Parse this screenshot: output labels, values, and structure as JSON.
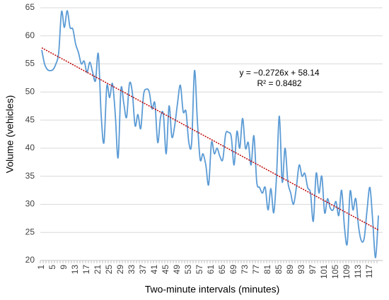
{
  "chart_data": {
    "type": "line",
    "y_axis_label": "Volume  (vehicles)",
    "x_axis_label": "Two-minute intervals (minutes)",
    "categories": [
      "1",
      null,
      null,
      null,
      "5",
      null,
      null,
      null,
      "9",
      null,
      null,
      null,
      "13",
      null,
      null,
      null,
      "17",
      null,
      null,
      null,
      "21",
      null,
      null,
      null,
      "25",
      null,
      null,
      null,
      "29",
      null,
      null,
      null,
      "33",
      null,
      null,
      null,
      "37",
      null,
      null,
      null,
      "41",
      null,
      null,
      null,
      "45",
      null,
      null,
      null,
      "49",
      null,
      null,
      null,
      "53",
      null,
      null,
      null,
      "57",
      null,
      null,
      null,
      "61",
      null,
      null,
      null,
      "65",
      null,
      null,
      null,
      "69",
      null,
      null,
      null,
      "73",
      null,
      null,
      null,
      "77",
      null,
      null,
      null,
      "81",
      null,
      null,
      null,
      "85",
      null,
      null,
      null,
      "89",
      null,
      null,
      null,
      "93",
      null,
      null,
      null,
      "97",
      null,
      null,
      null,
      "101",
      null,
      null,
      null,
      "105",
      null,
      null,
      null,
      "109",
      null,
      null,
      null,
      "113",
      null,
      null,
      null,
      "117",
      null,
      null,
      null
    ],
    "series": [
      {
        "color": "#5b9bd5",
        "values": [
          57.5,
          55,
          54,
          53.8,
          54,
          55,
          57,
          64.3,
          61.5,
          64.5,
          61.5,
          61.2,
          58.5,
          57,
          55,
          55.5,
          53.5,
          55.3,
          53.5,
          52,
          56.8,
          46,
          41,
          51,
          49,
          51.5,
          46,
          38.3,
          50.5,
          48,
          45.5,
          51.5,
          50,
          44,
          46,
          43.5,
          49.5,
          50.5,
          50,
          47,
          48,
          41,
          45.5,
          46,
          39,
          47.5,
          42,
          44,
          48,
          51.2,
          46.5,
          46.5,
          41,
          41,
          53.8,
          45,
          38,
          39,
          37,
          33.5,
          41,
          39,
          40,
          38.5,
          38,
          42.5,
          42.8,
          42,
          37,
          43,
          40,
          45.3,
          40,
          41,
          37,
          42.2,
          34,
          33,
          32,
          33,
          29,
          32.8,
          28.5,
          35,
          45.7,
          34,
          40,
          34,
          32,
          30,
          33,
          37,
          35,
          35.5,
          33,
          32,
          27,
          35.5,
          32,
          35,
          28.5,
          31,
          29.3,
          29,
          30.5,
          28,
          32.5,
          26,
          23,
          32.3,
          29,
          31,
          26,
          23.5,
          24,
          29,
          33,
          27,
          20.5,
          28
        ]
      }
    ],
    "trendline": {
      "color": "#c00000",
      "values": [
        57.87,
        25.43
      ],
      "equation": "y = −0.2726x + 58.14",
      "r_squared": "R² = 0.8482"
    },
    "ylim": [
      20,
      65
    ],
    "yticks": [
      20,
      25,
      30,
      35,
      40,
      45,
      50,
      55,
      60,
      65
    ],
    "grid": true
  }
}
